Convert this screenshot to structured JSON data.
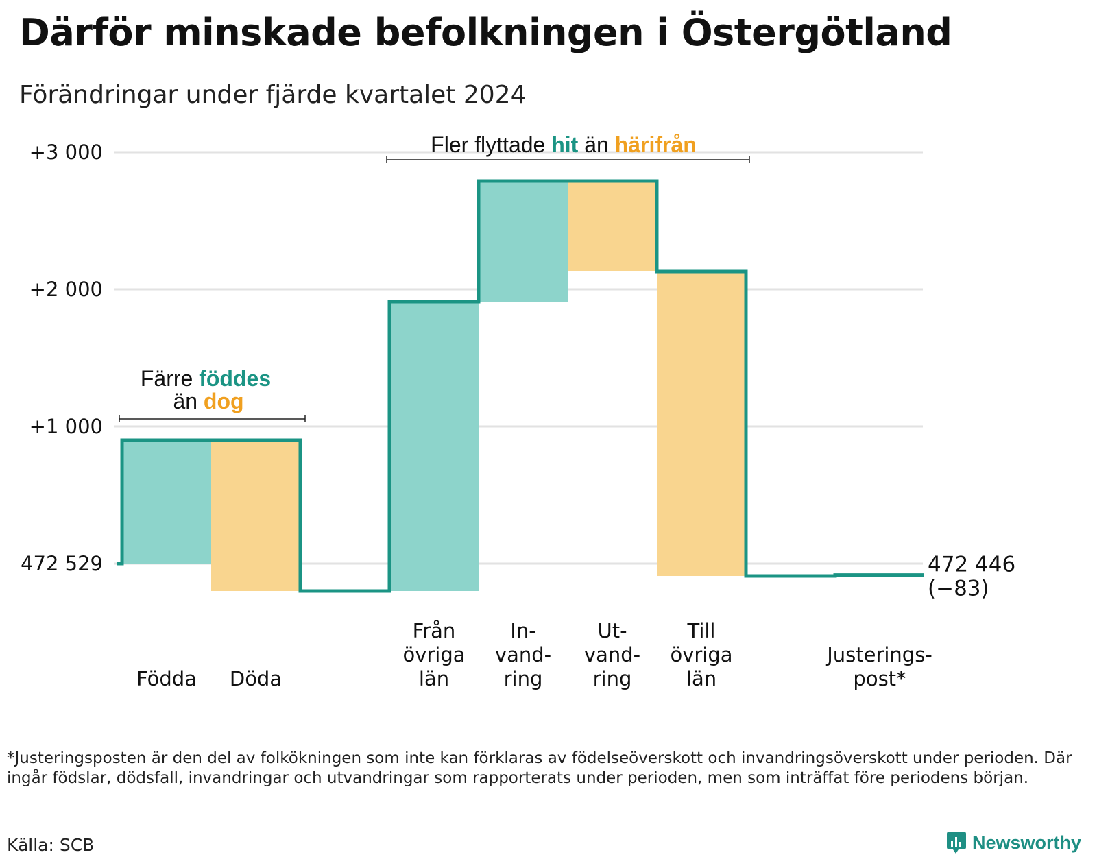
{
  "title": "Därför minskade befolkningen i Östergötland",
  "subtitle": "Förändringar under fjärde kvartalet 2024",
  "colors": {
    "inflow": "#8dd4cb",
    "outflow": "#f9d58f",
    "line": "#1b9484",
    "accent_teal": "#1b9484",
    "accent_orange": "#f0a020",
    "grid": "#e2e2e2"
  },
  "chart_data": {
    "type": "waterfall",
    "start_value": 472529,
    "start_label": "472 529",
    "end_value": 472446,
    "end_label": "472 446",
    "end_change_label": "(−83)",
    "y_ticks": [
      {
        "value": 1000,
        "label": "+1 000"
      },
      {
        "value": 2000,
        "label": "+2 000"
      },
      {
        "value": 3000,
        "label": "+3 000"
      }
    ],
    "ylim": [
      -300,
      3000
    ],
    "grid": true,
    "steps": [
      {
        "label": [
          "Födda"
        ],
        "change": 900,
        "kind": "in",
        "slot": 0
      },
      {
        "label": [
          "Döda"
        ],
        "change": -1100,
        "kind": "out",
        "slot": 1
      },
      {
        "label": [
          "Från",
          "övriga",
          "län"
        ],
        "change": 2110,
        "kind": "in",
        "slot": 3
      },
      {
        "label": [
          "In-",
          "vand-",
          "ring"
        ],
        "change": 880,
        "kind": "in",
        "slot": 4
      },
      {
        "label": [
          "Ut-",
          "vand-",
          "ring"
        ],
        "change": -660,
        "kind": "out",
        "slot": 5
      },
      {
        "label": [
          "Till",
          "övriga",
          "län"
        ],
        "change": -2220,
        "kind": "out",
        "slot": 6
      },
      {
        "label": [
          "Justerings-",
          "post*"
        ],
        "change": 7,
        "kind": "adj",
        "slot": 8
      }
    ],
    "annotations": [
      {
        "parts": [
          {
            "text": "Färre ",
            "color": "dark"
          },
          {
            "text": "föddes",
            "color": "teal"
          }
        ],
        "parts2": [
          {
            "text": "än ",
            "color": "dark"
          },
          {
            "text": "dog",
            "color": "orange"
          }
        ]
      },
      {
        "parts": [
          {
            "text": "Fler flyttade ",
            "color": "dark"
          },
          {
            "text": "hit",
            "color": "teal"
          },
          {
            "text": " än ",
            "color": "dark"
          },
          {
            "text": "härifrån",
            "color": "orange"
          }
        ]
      }
    ]
  },
  "footnote": "*Justeringsposten är den del av folkökningen som inte kan förklaras av födelseöverskott och invandringsöverskott under perioden. Där ingår födslar, dödsfall, invandringar och utvandringar som rapporterats under perioden, men som inträffat före periodens början.",
  "source": "Källa: SCB",
  "brand": {
    "name": "Newsworthy",
    "icon": "newsworthy-logo-icon"
  }
}
